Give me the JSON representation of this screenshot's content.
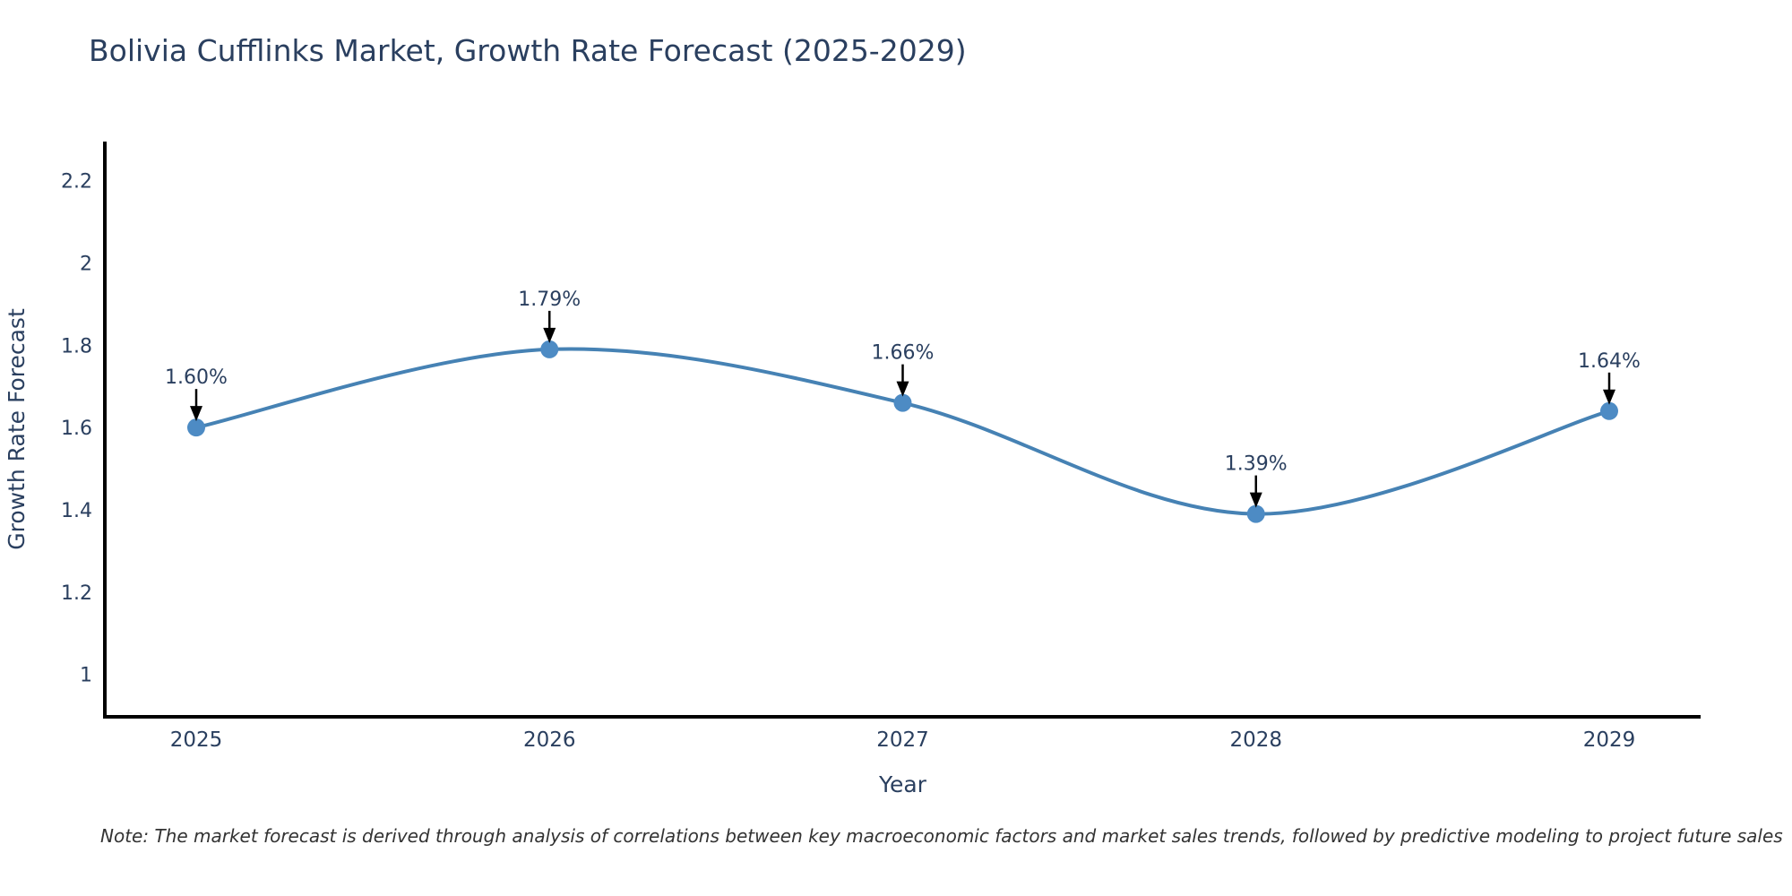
{
  "title": "Bolivia Cufflinks Market, Growth Rate Forecast (2025-2029)",
  "note": "Note: The market forecast is derived through analysis of correlations between key macroeconomic factors and market sales trends, followed by predictive modeling to project future sales",
  "chart_data": {
    "type": "line",
    "line_shape": "spline",
    "x": [
      2025,
      2026,
      2027,
      2028,
      2029
    ],
    "values": [
      1.6,
      1.79,
      1.66,
      1.39,
      1.64
    ],
    "point_labels": [
      "1.60%",
      "1.79%",
      "1.66%",
      "1.39%",
      "1.64%"
    ],
    "title": "Bolivia Cufflinks Market, Growth Rate Forecast (2025-2029)",
    "xlabel": "Year",
    "ylabel": "Growth Rate Forecast",
    "x_tick_labels": [
      "2025",
      "2026",
      "2027",
      "2028",
      "2029"
    ],
    "y_ticks": [
      1,
      1.2,
      1.4,
      1.6,
      1.8,
      2,
      2.2
    ],
    "y_tick_labels": [
      "1",
      "1.2",
      "1.4",
      "1.6",
      "1.8",
      "2",
      "2.2"
    ],
    "ylim": [
      0.897,
      2.295
    ],
    "grid": false,
    "legend": "none",
    "colors": {
      "line": "#4682b4",
      "marker": "#4d8bc4",
      "axis": "#000000",
      "text": "#2a3f5f",
      "annotation_arrow": "#000000"
    }
  }
}
